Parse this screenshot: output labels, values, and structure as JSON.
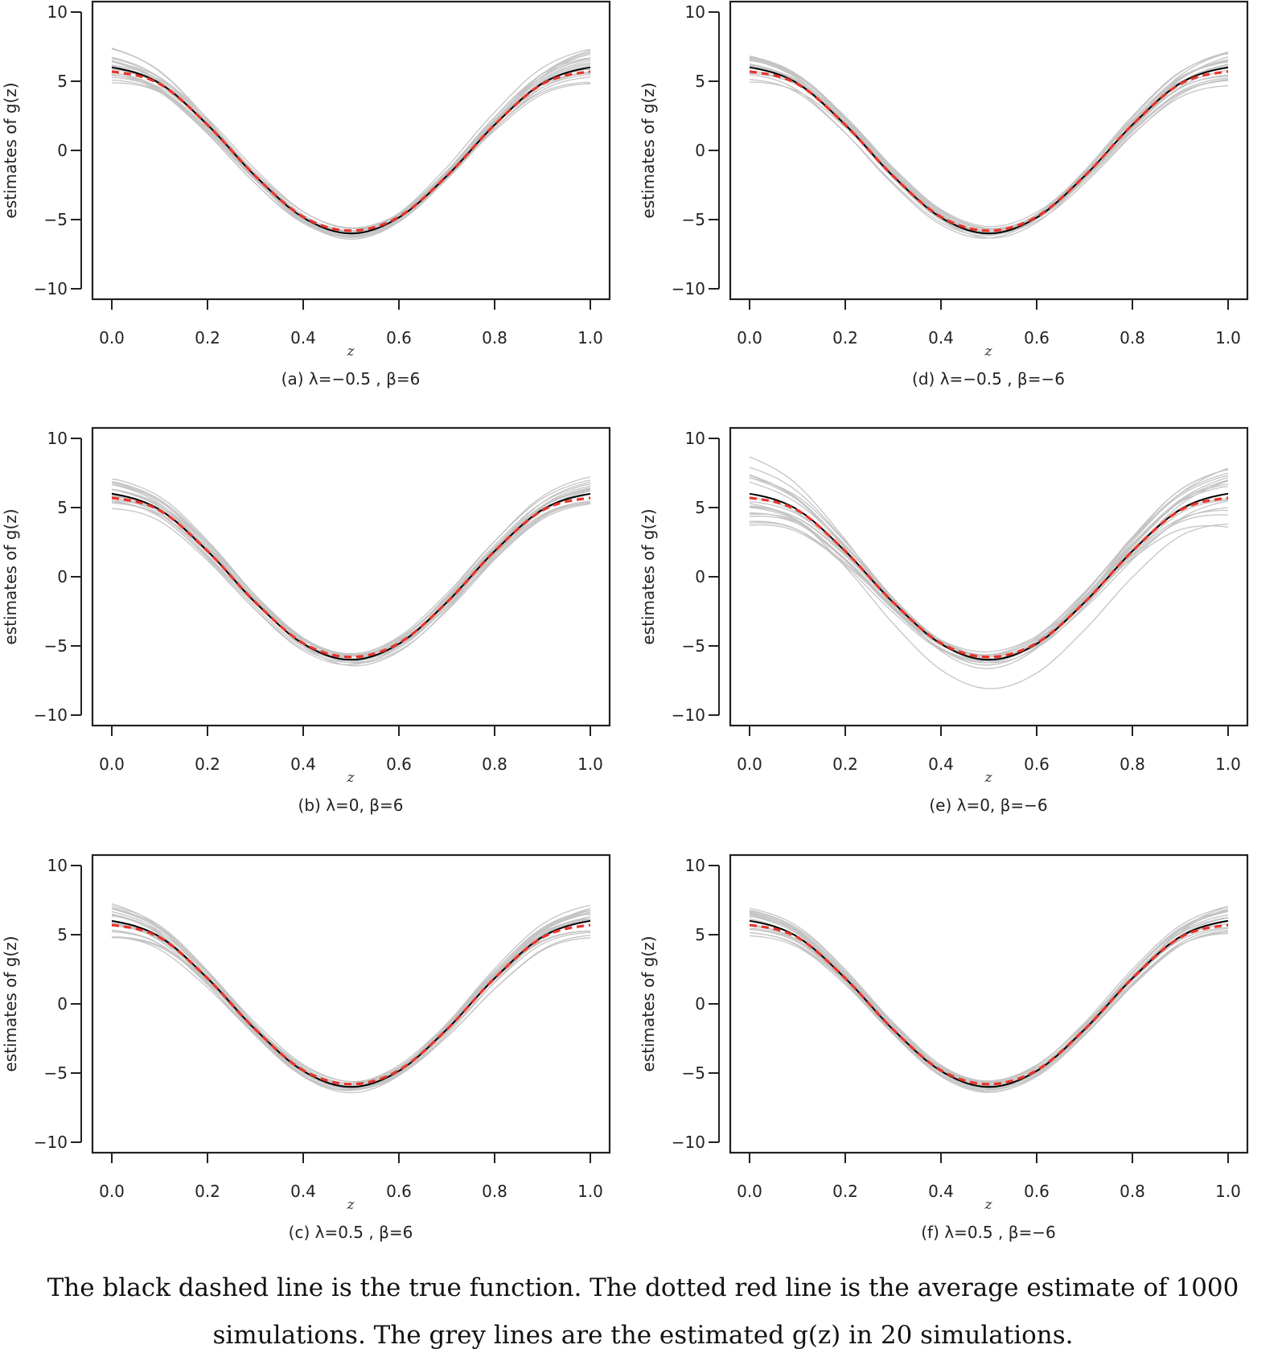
{
  "chart_data": [
    {
      "type": "line",
      "caption": "(a)  λ=−0.5 , β=6",
      "xlabel": "z",
      "ylabel": "estimates of g(z)",
      "xlim": [
        0,
        1
      ],
      "ylim": [
        -10,
        10
      ],
      "xticks": [
        "0.0",
        "0.2",
        "0.4",
        "0.6",
        "0.8",
        "1.0"
      ],
      "yticks": [
        "10",
        "5",
        "0",
        "−5",
        "−10"
      ],
      "spread": 1.0,
      "x": [
        0,
        0.1,
        0.2,
        0.3,
        0.4,
        0.5,
        0.6,
        0.7,
        0.8,
        0.9,
        1.0
      ],
      "series": [
        {
          "name": "true function",
          "color": "#000000",
          "values": [
            6,
            4.85,
            1.85,
            -1.85,
            -4.85,
            -6,
            -4.85,
            -1.85,
            1.85,
            4.85,
            6
          ]
        },
        {
          "name": "average estimate of 1000 simulations",
          "color": "#e8332a",
          "values": [
            5.7,
            4.8,
            1.85,
            -1.85,
            -4.8,
            -5.8,
            -4.8,
            -1.85,
            1.85,
            4.8,
            5.7
          ]
        },
        {
          "name": "estimated g(z) in 20 simulations",
          "color": "#c4c4c4",
          "count": 20
        }
      ]
    },
    {
      "type": "line",
      "caption": "(b)  λ=0, β=6",
      "xlabel": "z",
      "ylabel": "estimates of g(z)",
      "xlim": [
        0,
        1
      ],
      "ylim": [
        -10,
        10
      ],
      "xticks": [
        "0.0",
        "0.2",
        "0.4",
        "0.6",
        "0.8",
        "1.0"
      ],
      "yticks": [
        "10",
        "5",
        "0",
        "−5",
        "−10"
      ],
      "spread": 0.8,
      "x": [
        0,
        0.1,
        0.2,
        0.3,
        0.4,
        0.5,
        0.6,
        0.7,
        0.8,
        0.9,
        1.0
      ],
      "series": [
        {
          "name": "true function",
          "color": "#000000",
          "values": [
            6,
            4.85,
            1.85,
            -1.85,
            -4.85,
            -6,
            -4.85,
            -1.85,
            1.85,
            4.85,
            6
          ]
        },
        {
          "name": "average estimate of 1000 simulations",
          "color": "#e8332a",
          "values": [
            5.7,
            4.8,
            1.85,
            -1.85,
            -4.8,
            -5.8,
            -4.8,
            -1.85,
            1.85,
            4.8,
            5.7
          ]
        },
        {
          "name": "estimated g(z) in 20 simulations",
          "color": "#c4c4c4",
          "count": 20
        }
      ]
    },
    {
      "type": "line",
      "caption": "(c)  λ=0.5 , β=6",
      "xlabel": "z",
      "ylabel": "estimates of g(z)",
      "xlim": [
        0,
        1
      ],
      "ylim": [
        -10,
        10
      ],
      "xticks": [
        "0.0",
        "0.2",
        "0.4",
        "0.6",
        "0.8",
        "1.0"
      ],
      "yticks": [
        "10",
        "5",
        "0",
        "−5",
        "−10"
      ],
      "spread": 0.8,
      "x": [
        0,
        0.1,
        0.2,
        0.3,
        0.4,
        0.5,
        0.6,
        0.7,
        0.8,
        0.9,
        1.0
      ],
      "series": [
        {
          "name": "true function",
          "color": "#000000",
          "values": [
            6,
            4.85,
            1.85,
            -1.85,
            -4.85,
            -6,
            -4.85,
            -1.85,
            1.85,
            4.85,
            6
          ]
        },
        {
          "name": "average estimate of 1000 simulations",
          "color": "#e8332a",
          "values": [
            5.7,
            4.8,
            1.85,
            -1.85,
            -4.8,
            -5.8,
            -4.8,
            -1.85,
            1.85,
            4.8,
            5.7
          ]
        },
        {
          "name": "estimated g(z) in 20 simulations",
          "color": "#c4c4c4",
          "count": 20
        }
      ]
    },
    {
      "type": "line",
      "caption": "(d)  λ=−0.5 , β=−6",
      "xlabel": "z",
      "ylabel": "estimates of g(z)",
      "xlim": [
        0,
        1
      ],
      "ylim": [
        -10,
        10
      ],
      "xticks": [
        "0.0",
        "0.2",
        "0.4",
        "0.6",
        "0.8",
        "1.0"
      ],
      "yticks": [
        "10",
        "5",
        "0",
        "−5",
        "−10"
      ],
      "spread": 0.8,
      "x": [
        0,
        0.1,
        0.2,
        0.3,
        0.4,
        0.5,
        0.6,
        0.7,
        0.8,
        0.9,
        1.0
      ],
      "series": [
        {
          "name": "true function",
          "color": "#000000",
          "values": [
            6,
            4.85,
            1.85,
            -1.85,
            -4.85,
            -6,
            -4.85,
            -1.85,
            1.85,
            4.85,
            6
          ]
        },
        {
          "name": "average estimate of 1000 simulations",
          "color": "#e8332a",
          "values": [
            5.7,
            4.8,
            1.85,
            -1.85,
            -4.8,
            -5.8,
            -4.8,
            -1.85,
            1.85,
            4.8,
            5.7
          ]
        },
        {
          "name": "estimated g(z) in 20 simulations",
          "color": "#c4c4c4",
          "count": 20
        }
      ]
    },
    {
      "type": "line",
      "caption": "(e)  λ=0, β=−6",
      "xlabel": "z",
      "ylabel": "estimates of g(z)",
      "xlim": [
        0,
        1
      ],
      "ylim": [
        -10,
        10
      ],
      "xticks": [
        "0.0",
        "0.2",
        "0.4",
        "0.6",
        "0.8",
        "1.0"
      ],
      "yticks": [
        "10",
        "5",
        "0",
        "−5",
        "−10"
      ],
      "spread": 1.5,
      "x": [
        0,
        0.1,
        0.2,
        0.3,
        0.4,
        0.5,
        0.6,
        0.7,
        0.8,
        0.9,
        1.0
      ],
      "series": [
        {
          "name": "true function",
          "color": "#000000",
          "values": [
            6,
            4.85,
            1.85,
            -1.85,
            -4.85,
            -6,
            -4.85,
            -1.85,
            1.85,
            4.85,
            6
          ]
        },
        {
          "name": "average estimate of 1000 simulations",
          "color": "#e8332a",
          "values": [
            5.7,
            4.8,
            1.85,
            -1.85,
            -4.8,
            -5.8,
            -4.8,
            -1.85,
            1.85,
            4.8,
            5.7
          ]
        },
        {
          "name": "estimated g(z) in 20 simulations",
          "color": "#c4c4c4",
          "count": 20
        }
      ]
    },
    {
      "type": "line",
      "caption": "(f)  λ=0.5 , β=−6",
      "xlabel": "z",
      "ylabel": "estimates of g(z)",
      "xlim": [
        0,
        1
      ],
      "ylim": [
        -10,
        10
      ],
      "xticks": [
        "0.0",
        "0.2",
        "0.4",
        "0.6",
        "0.8",
        "1.0"
      ],
      "yticks": [
        "10",
        "5",
        "0",
        "−5",
        "−10"
      ],
      "spread": 0.8,
      "x": [
        0,
        0.1,
        0.2,
        0.3,
        0.4,
        0.5,
        0.6,
        0.7,
        0.8,
        0.9,
        1.0
      ],
      "series": [
        {
          "name": "true function",
          "color": "#000000",
          "values": [
            6,
            4.85,
            1.85,
            -1.85,
            -4.85,
            -6,
            -4.85,
            -1.85,
            1.85,
            4.85,
            6
          ]
        },
        {
          "name": "average estimate of 1000 simulations",
          "color": "#e8332a",
          "values": [
            5.7,
            4.8,
            1.85,
            -1.85,
            -4.8,
            -5.8,
            -4.8,
            -1.85,
            1.85,
            4.8,
            5.7
          ]
        },
        {
          "name": "estimated g(z) in 20 simulations",
          "color": "#c4c4c4",
          "count": 20
        }
      ]
    }
  ],
  "note": {
    "line1": "The black dashed line is the true function. The dotted red line is the average estimate of 1000",
    "line2": "simulations. The grey lines are the estimated g(z) in 20 simulations."
  }
}
